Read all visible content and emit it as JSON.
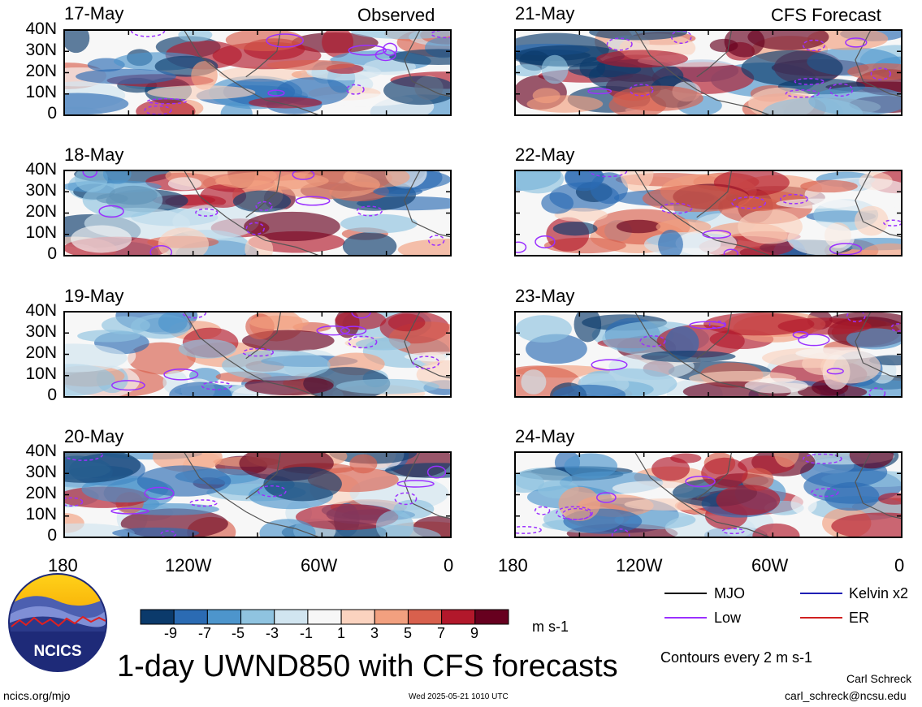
{
  "figure": {
    "title": "1-day UWND850 with CFS forecasts",
    "observed_label": "Observed",
    "forecast_label": "CFS Forecast",
    "units": "m s-1",
    "contour_note": "Contours every 2 m s-1",
    "author": "Carl Schreck",
    "email": "carl_schreck@ncsu.edu",
    "site": "ncics.org/mjo",
    "timestamp": "Wed 2025-05-21 1010 UTC",
    "logo_text": "NCICS"
  },
  "panels": {
    "observed": [
      {
        "date": "17-May"
      },
      {
        "date": "18-May"
      },
      {
        "date": "19-May"
      },
      {
        "date": "20-May"
      }
    ],
    "forecast": [
      {
        "date": "21-May"
      },
      {
        "date": "22-May"
      },
      {
        "date": "23-May"
      },
      {
        "date": "24-May"
      }
    ]
  },
  "axes": {
    "lat_ticks": [
      "40N",
      "30N",
      "20N",
      "10N",
      "0"
    ],
    "lon_ticks": [
      "180",
      "120W",
      "60W",
      "0"
    ]
  },
  "colorbar": {
    "labels": [
      "-9",
      "-7",
      "-5",
      "-3",
      "-1",
      "1",
      "3",
      "5",
      "7",
      "9"
    ],
    "colors": [
      "#0b3a6b",
      "#2b6bb3",
      "#4d95cc",
      "#8fc3e0",
      "#d1e5f0",
      "#f7f7f7",
      "#fbd3bf",
      "#f2a07f",
      "#d8604d",
      "#b2182b",
      "#67001f"
    ]
  },
  "legend": [
    {
      "label": "MJO",
      "color": "#000000"
    },
    {
      "label": "Kelvin x2",
      "color": "#1f1fb4"
    },
    {
      "label": "Low",
      "color": "#9b30ff"
    },
    {
      "label": "ER",
      "color": "#d02020"
    }
  ]
}
